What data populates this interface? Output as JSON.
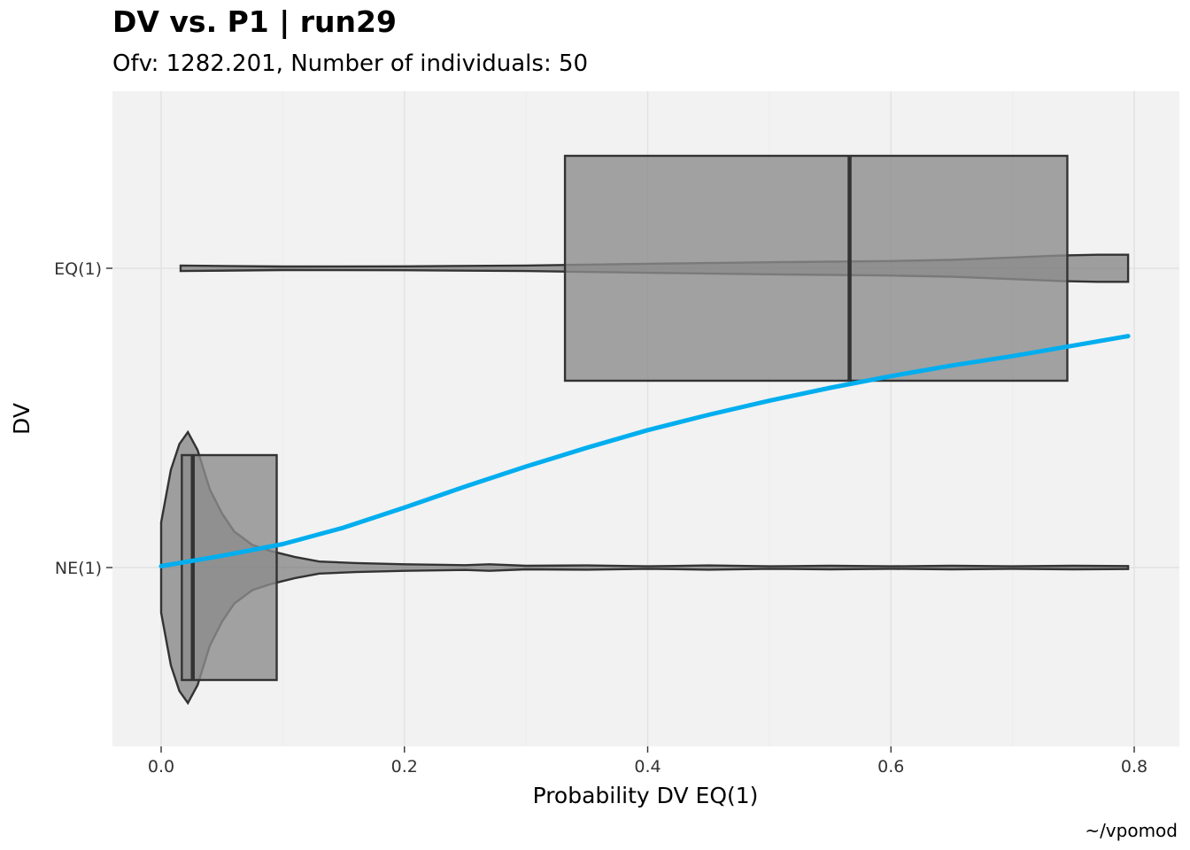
{
  "chart_data": {
    "type": "boxplot-violin",
    "title": "DV vs. P1 | run29",
    "subtitle": "Ofv: 1282.201, Number of individuals: 50",
    "xlabel": "Probability DV EQ(1)",
    "ylabel": "DV",
    "caption": "~/vpomod",
    "xlim": [
      -0.04,
      0.835
    ],
    "x_ticks": [
      0.0,
      0.2,
      0.4,
      0.6,
      0.8
    ],
    "x_tick_labels": [
      "0.0",
      "0.2",
      "0.4",
      "0.6",
      "0.8"
    ],
    "categories": [
      "NE(1)",
      "EQ(1)"
    ],
    "grid": true,
    "colors": {
      "panel": "#f2f2f2",
      "grid": "#e2e2e2",
      "box_fill": "#8c8c8c",
      "violin_fill": "#5a5a5a",
      "outline": "#333333",
      "smooth": "#00aeef"
    },
    "boxes": [
      {
        "category": "NE(1)",
        "q1": 0.017,
        "median": 0.026,
        "q3": 0.095
      },
      {
        "category": "EQ(1)",
        "q1": 0.332,
        "median": 0.566,
        "q3": 0.745
      }
    ],
    "violins": [
      {
        "category": "NE(1)",
        "profile": [
          [
            0.0,
            0.3
          ],
          [
            0.008,
            0.65
          ],
          [
            0.015,
            0.82
          ],
          [
            0.022,
            0.9
          ],
          [
            0.03,
            0.78
          ],
          [
            0.04,
            0.52
          ],
          [
            0.05,
            0.36
          ],
          [
            0.06,
            0.24
          ],
          [
            0.075,
            0.15
          ],
          [
            0.09,
            0.11
          ],
          [
            0.11,
            0.07
          ],
          [
            0.13,
            0.04
          ],
          [
            0.16,
            0.03
          ],
          [
            0.2,
            0.022
          ],
          [
            0.25,
            0.016
          ],
          [
            0.27,
            0.022
          ],
          [
            0.3,
            0.012
          ],
          [
            0.35,
            0.014
          ],
          [
            0.4,
            0.008
          ],
          [
            0.45,
            0.014
          ],
          [
            0.5,
            0.008
          ],
          [
            0.55,
            0.012
          ],
          [
            0.6,
            0.008
          ],
          [
            0.65,
            0.012
          ],
          [
            0.7,
            0.008
          ],
          [
            0.75,
            0.012
          ],
          [
            0.795,
            0.01
          ]
        ]
      },
      {
        "category": "EQ(1)",
        "profile": [
          [
            0.016,
            0.018
          ],
          [
            0.1,
            0.012
          ],
          [
            0.2,
            0.013
          ],
          [
            0.3,
            0.018
          ],
          [
            0.4,
            0.03
          ],
          [
            0.5,
            0.04
          ],
          [
            0.6,
            0.048
          ],
          [
            0.65,
            0.056
          ],
          [
            0.7,
            0.072
          ],
          [
            0.74,
            0.085
          ],
          [
            0.77,
            0.09
          ],
          [
            0.795,
            0.09
          ]
        ]
      }
    ],
    "smooth": {
      "x": [
        0.0,
        0.05,
        0.1,
        0.15,
        0.2,
        0.25,
        0.3,
        0.35,
        0.4,
        0.45,
        0.5,
        0.55,
        0.6,
        0.65,
        0.7,
        0.75,
        0.795
      ],
      "y_frac": [
        0.006,
        0.05,
        0.1,
        0.17,
        0.255,
        0.345,
        0.43,
        0.51,
        0.585,
        0.65,
        0.71,
        0.765,
        0.815,
        0.86,
        0.9,
        0.945,
        0.985
      ]
    }
  }
}
